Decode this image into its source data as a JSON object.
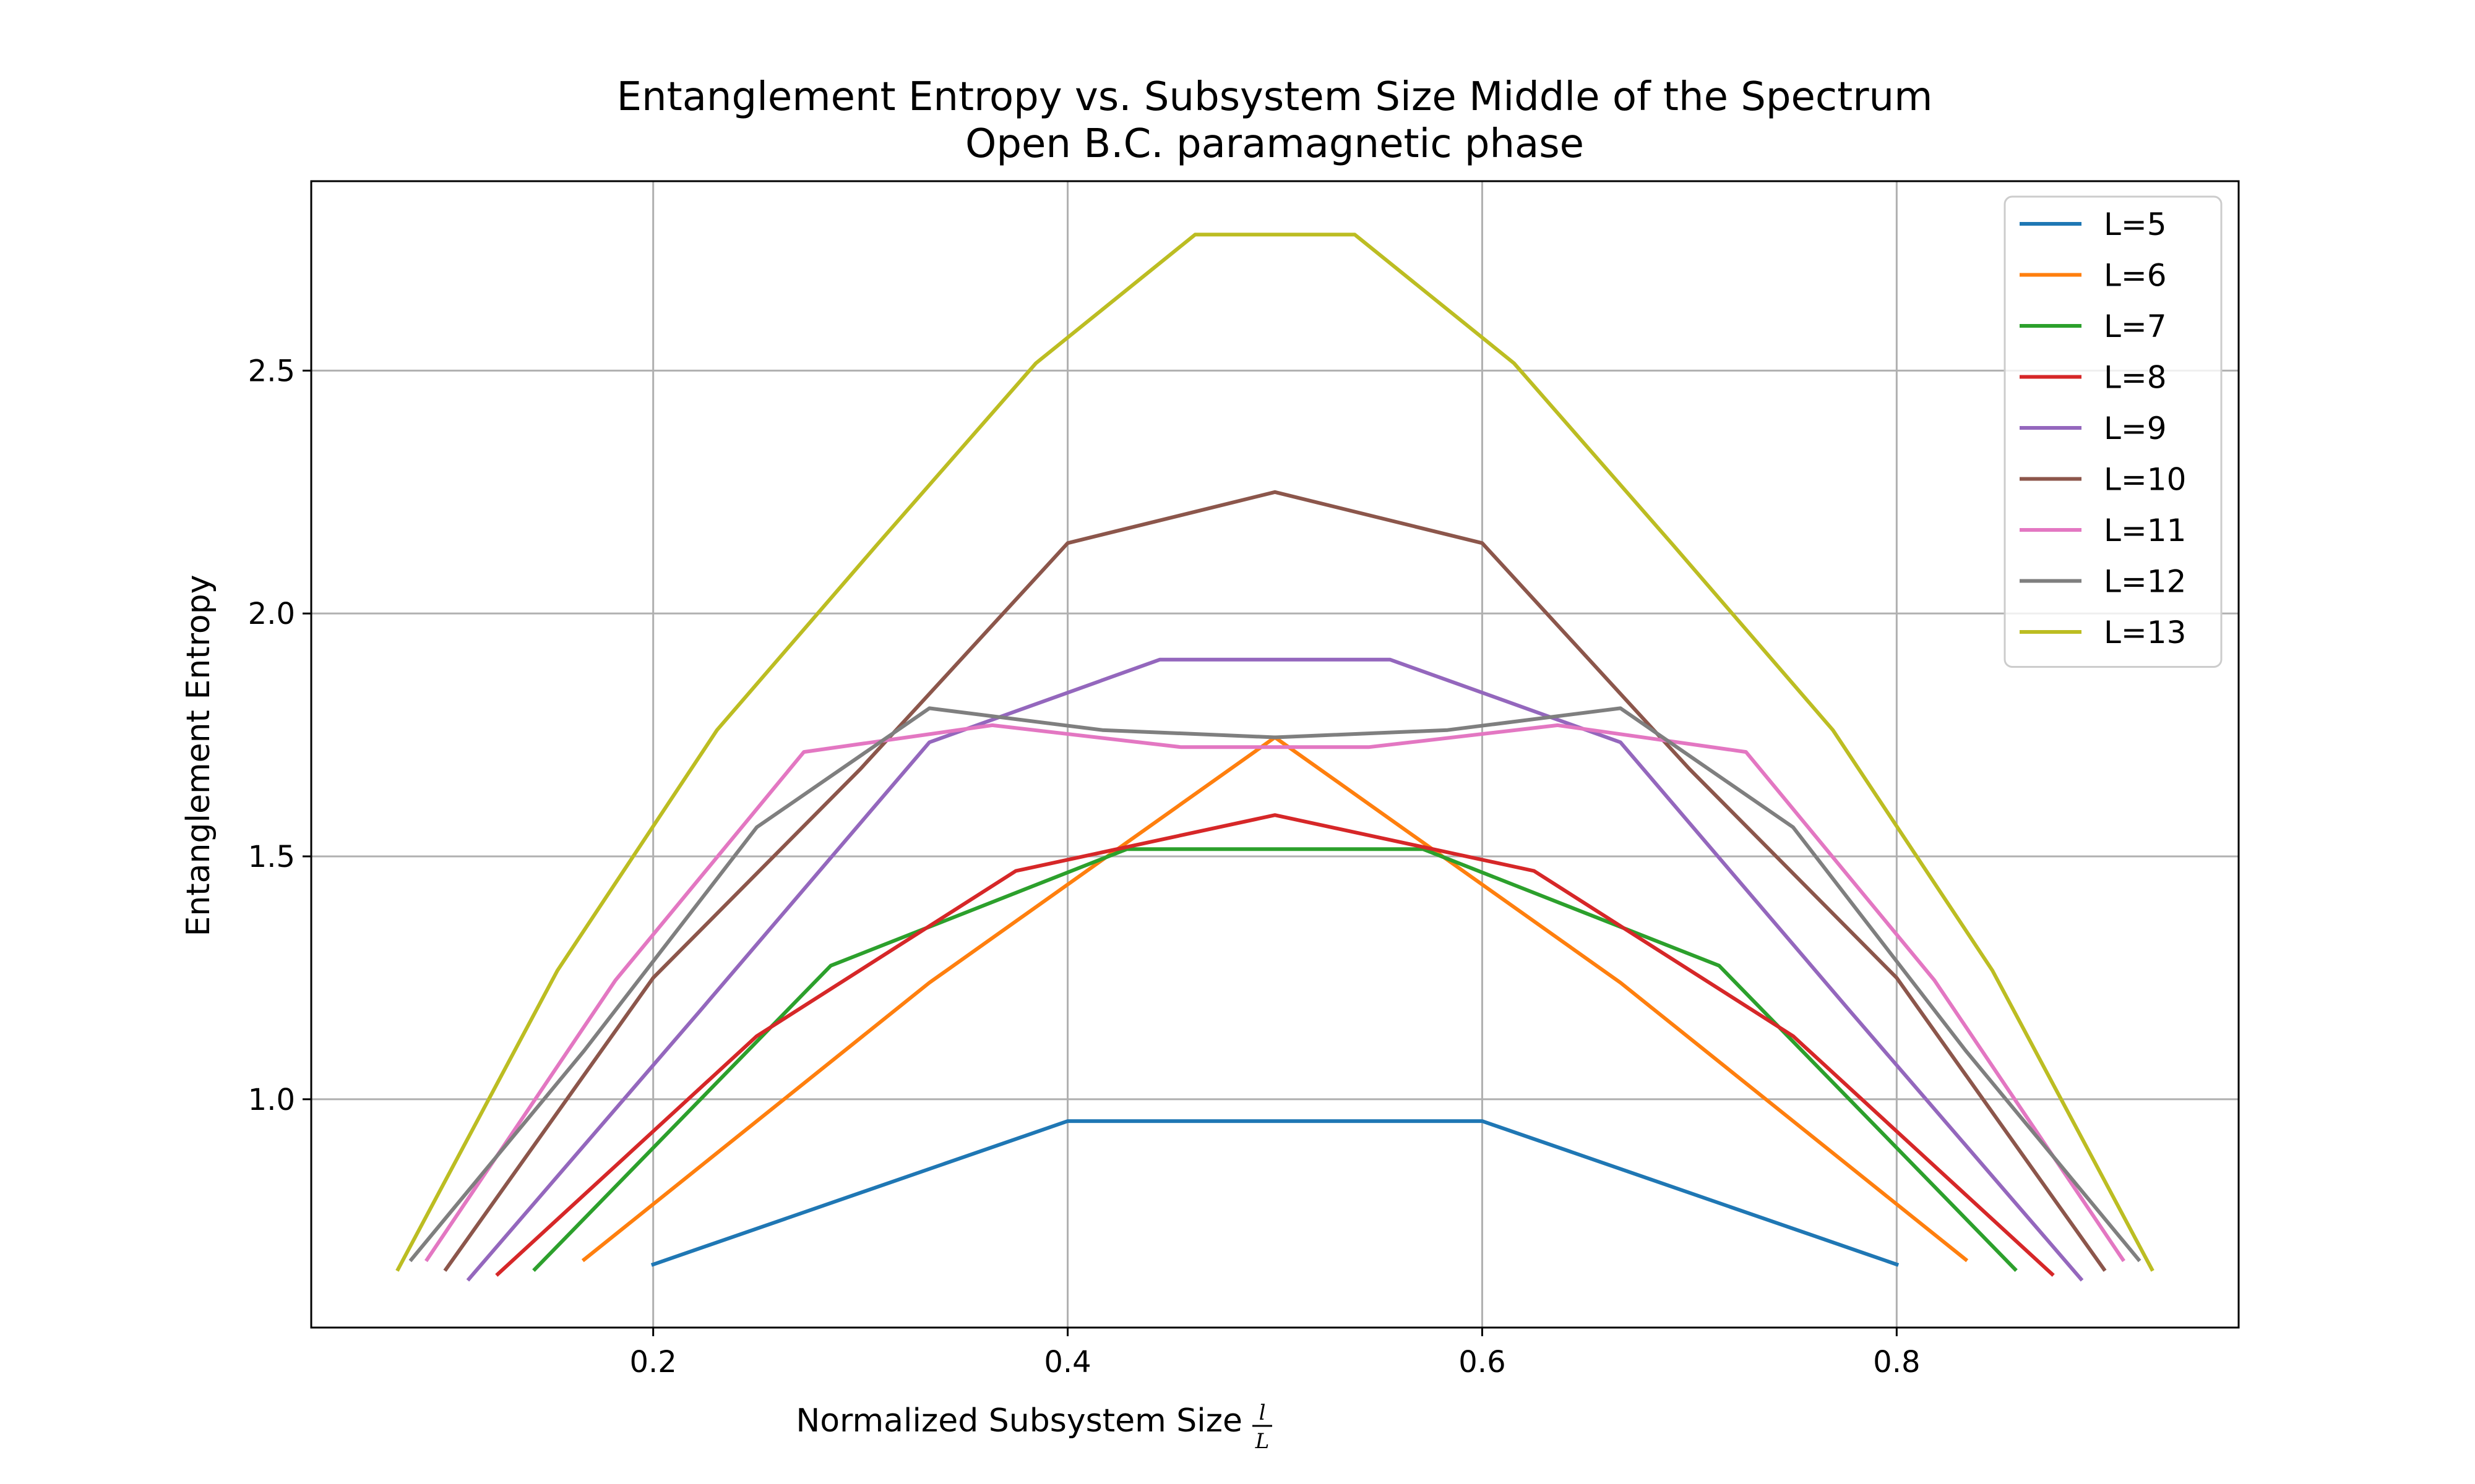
{
  "chart_data": {
    "type": "line",
    "title": "Entanglement Entropy vs. Subsystem Size Middle of the Spectrum",
    "subtitle": "Open B.C. paramagnetic phase",
    "xlabel": "Normalized Subsystem Size",
    "xlabel_math_numerator": "l",
    "xlabel_math_denominator": "L",
    "ylabel": "Entanglement Entropy",
    "xlim": [
      0.035,
      0.965
    ],
    "ylim": [
      0.53,
      2.89
    ],
    "xticks": [
      0.2,
      0.4,
      0.6,
      0.8
    ],
    "xtick_labels": [
      "0.2",
      "0.4",
      "0.6",
      "0.8"
    ],
    "yticks": [
      1.0,
      1.5,
      2.0,
      2.5
    ],
    "ytick_labels": [
      "1.0",
      "1.5",
      "2.0",
      "2.5"
    ],
    "grid": true,
    "legend_position": "top-right",
    "series": [
      {
        "name": "L=5",
        "color": "#1f77b4",
        "x": [
          0.2,
          0.4,
          0.6,
          0.8
        ],
        "y": [
          0.66,
          0.955,
          0.955,
          0.66
        ]
      },
      {
        "name": "L=6",
        "color": "#ff7f0e",
        "x": [
          0.1667,
          0.3333,
          0.5,
          0.6667,
          0.8333
        ],
        "y": [
          0.67,
          1.24,
          1.745,
          1.24,
          0.67
        ]
      },
      {
        "name": "L=7",
        "color": "#2ca02c",
        "x": [
          0.1429,
          0.2857,
          0.4286,
          0.5714,
          0.7143,
          0.8571
        ],
        "y": [
          0.65,
          1.275,
          1.515,
          1.515,
          1.275,
          0.65
        ]
      },
      {
        "name": "L=8",
        "color": "#d62728",
        "x": [
          0.125,
          0.25,
          0.375,
          0.5,
          0.625,
          0.75,
          0.875
        ],
        "y": [
          0.64,
          1.13,
          1.47,
          1.585,
          1.47,
          1.13,
          0.64
        ]
      },
      {
        "name": "L=9",
        "color": "#9467bd",
        "x": [
          0.1111,
          0.2222,
          0.3333,
          0.4444,
          0.5556,
          0.6667,
          0.7778,
          0.8889
        ],
        "y": [
          0.63,
          1.18,
          1.735,
          1.905,
          1.905,
          1.735,
          1.18,
          0.63
        ]
      },
      {
        "name": "L=10",
        "color": "#8c564b",
        "x": [
          0.1,
          0.2,
          0.3,
          0.4,
          0.5,
          0.6,
          0.7,
          0.8,
          0.9
        ],
        "y": [
          0.65,
          1.25,
          1.68,
          2.145,
          2.25,
          2.145,
          1.68,
          1.25,
          0.65
        ]
      },
      {
        "name": "L=11",
        "color": "#e377c2",
        "x": [
          0.0909,
          0.1818,
          0.2727,
          0.3636,
          0.4545,
          0.5455,
          0.6364,
          0.7273,
          0.8182,
          0.9091
        ],
        "y": [
          0.67,
          1.245,
          1.715,
          1.77,
          1.725,
          1.725,
          1.77,
          1.715,
          1.245,
          0.67
        ]
      },
      {
        "name": "L=12",
        "color": "#7f7f7f",
        "x": [
          0.0833,
          0.1667,
          0.25,
          0.3333,
          0.4167,
          0.5,
          0.5833,
          0.6667,
          0.75,
          0.8333,
          0.9167
        ],
        "y": [
          0.67,
          1.1,
          1.56,
          1.805,
          1.76,
          1.745,
          1.76,
          1.805,
          1.56,
          1.1,
          0.67
        ]
      },
      {
        "name": "L=13",
        "color": "#bcbd22",
        "x": [
          0.0769,
          0.1538,
          0.2308,
          0.3077,
          0.3846,
          0.4615,
          0.5385,
          0.6154,
          0.6923,
          0.7692,
          0.8462,
          0.9231
        ],
        "y": [
          0.65,
          1.265,
          1.76,
          2.14,
          2.515,
          2.78,
          2.78,
          2.515,
          2.14,
          1.76,
          1.265,
          0.65
        ]
      }
    ]
  }
}
